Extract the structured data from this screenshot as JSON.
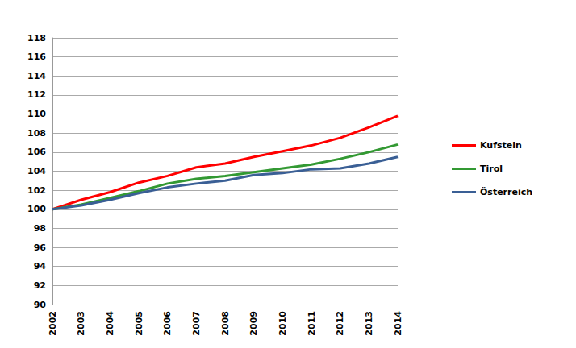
{
  "chart_data": {
    "type": "line",
    "categories": [
      "2002",
      "2003",
      "2004",
      "2005",
      "2006",
      "2007",
      "2008",
      "2009",
      "2010",
      "2011",
      "2012",
      "2013",
      "2014"
    ],
    "series": [
      {
        "name": "Kufstein",
        "color": "#ff0000",
        "values": [
          100,
          101.0,
          101.8,
          102.8,
          103.5,
          104.4,
          104.8,
          105.5,
          106.1,
          106.7,
          107.5,
          108.6,
          109.8
        ]
      },
      {
        "name": "Tirol",
        "color": "#339933",
        "values": [
          100,
          100.5,
          101.2,
          101.9,
          102.7,
          103.2,
          103.5,
          103.9,
          104.3,
          104.7,
          105.3,
          106.0,
          106.8
        ]
      },
      {
        "name": "Österreich",
        "color": "#3a5f95",
        "values": [
          100,
          100.4,
          101.0,
          101.7,
          102.3,
          102.7,
          103.0,
          103.6,
          103.8,
          104.2,
          104.3,
          104.8,
          105.5
        ]
      }
    ],
    "ylim": [
      90,
      118
    ],
    "yticks": [
      90,
      92,
      94,
      96,
      98,
      100,
      102,
      104,
      106,
      108,
      110,
      112,
      114,
      116,
      118
    ],
    "grid": true,
    "legend": "right"
  }
}
